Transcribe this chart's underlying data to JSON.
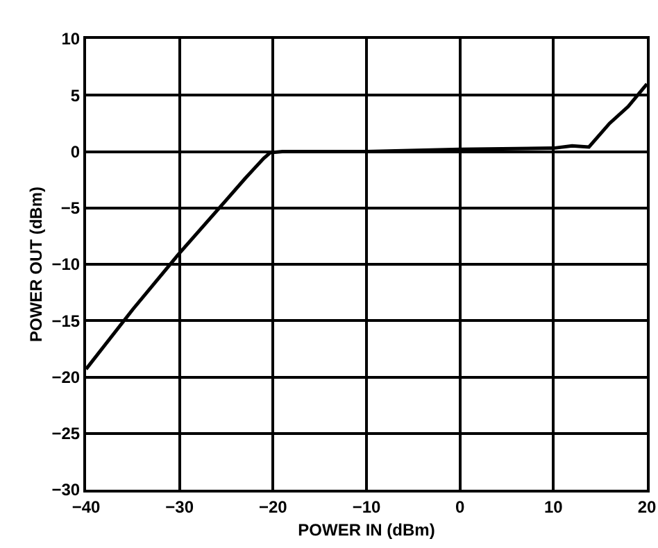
{
  "chart_data": {
    "type": "line",
    "xlabel": "POWER IN (dBm)",
    "ylabel": "POWER OUT (dBm)",
    "x": [
      -40,
      -35,
      -30,
      -25,
      -23,
      -22,
      -21,
      -20.3,
      -19,
      -15,
      -10,
      0,
      10,
      12,
      13.8,
      16,
      18,
      20
    ],
    "series": [
      {
        "color": "#000000",
        "values": [
          -19.3,
          -14,
          -9,
          -4.3,
          -2.4,
          -1.5,
          -0.6,
          -0.1,
          0,
          0,
          0,
          0.2,
          0.3,
          0.5,
          0.4,
          2.5,
          4,
          6
        ]
      }
    ],
    "xlim": [
      -40,
      20
    ],
    "xticks": [
      -40,
      -30,
      -20,
      -10,
      0,
      10,
      20
    ],
    "ylim": [
      -30,
      10
    ],
    "yticks": [
      -30,
      -25,
      -20,
      -15,
      -10,
      -5,
      0,
      5,
      10
    ],
    "grid": true,
    "marker": "none",
    "line_style": "solid"
  }
}
